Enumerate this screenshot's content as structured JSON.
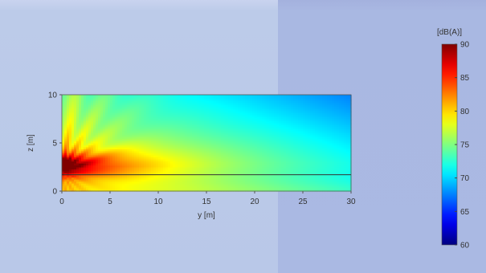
{
  "chart_data": {
    "type": "heatmap",
    "title": "",
    "xlabel": "y [m]",
    "ylabel": "z [m]",
    "xlim": [
      0,
      30
    ],
    "ylim": [
      0,
      10
    ],
    "x_ticks": [
      0,
      5,
      10,
      15,
      20,
      25,
      30
    ],
    "y_ticks": [
      0,
      5,
      10
    ],
    "colorbar": {
      "label": "[dB(A)]",
      "range": [
        60,
        90
      ],
      "ticks": [
        60,
        65,
        70,
        75,
        80,
        85,
        90
      ],
      "colormap": "jet"
    },
    "source": {
      "y": 0,
      "z": 3
    },
    "reference_line_z": 1.7,
    "sample_levels": [
      {
        "y": 0,
        "z": 3,
        "value": 88
      },
      {
        "y": 5,
        "z": 3,
        "value": 83
      },
      {
        "y": 10,
        "z": 3,
        "value": 80
      },
      {
        "y": 15,
        "z": 3,
        "value": 79
      },
      {
        "y": 20,
        "z": 3,
        "value": 77
      },
      {
        "y": 25,
        "z": 3,
        "value": 76
      },
      {
        "y": 30,
        "z": 3,
        "value": 75
      },
      {
        "y": 15,
        "z": 9,
        "value": 72
      },
      {
        "y": 30,
        "z": 9,
        "value": 70
      },
      {
        "y": 30,
        "z": 0.5,
        "value": 76
      }
    ]
  }
}
